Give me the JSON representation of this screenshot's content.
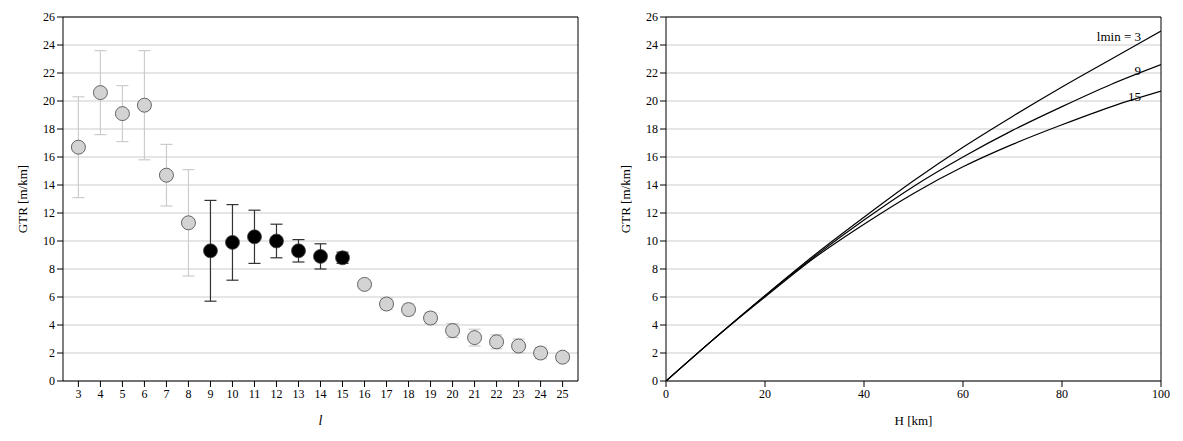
{
  "chart_data": [
    {
      "type": "scatter",
      "x": [
        3,
        4,
        5,
        6,
        7,
        8,
        9,
        10,
        11,
        12,
        13,
        14,
        15,
        16,
        17,
        18,
        19,
        20,
        21,
        22,
        23,
        24,
        25
      ],
      "values": [
        16.7,
        20.6,
        19.1,
        19.7,
        14.7,
        11.3,
        9.3,
        9.9,
        10.3,
        10.0,
        9.3,
        8.9,
        8.8,
        6.9,
        5.5,
        5.1,
        4.5,
        3.6,
        3.1,
        2.8,
        2.5,
        2.0,
        1.7
      ],
      "errors": [
        3.6,
        3.0,
        2.0,
        3.9,
        2.2,
        3.8,
        3.6,
        2.7,
        1.9,
        1.2,
        0.8,
        0.9,
        0.4,
        0.3,
        0.4,
        0.4,
        0.4,
        0.5,
        0.6,
        0.5,
        0.5,
        0.4,
        0.3
      ],
      "colors": [
        "#d3d3d3",
        "#d3d3d3",
        "#d3d3d3",
        "#d3d3d3",
        "#d3d3d3",
        "#d3d3d3",
        "#000000",
        "#000000",
        "#000000",
        "#000000",
        "#000000",
        "#000000",
        "#000000",
        "#d3d3d3",
        "#d3d3d3",
        "#d3d3d3",
        "#d3d3d3",
        "#d3d3d3",
        "#d3d3d3",
        "#d3d3d3",
        "#d3d3d3",
        "#d3d3d3",
        "#d3d3d3"
      ],
      "xlim": [
        2.3,
        25.7
      ],
      "xticks": [
        3,
        4,
        5,
        6,
        7,
        8,
        9,
        10,
        11,
        12,
        13,
        14,
        15,
        16,
        17,
        18,
        19,
        20,
        21,
        22,
        23,
        24,
        25
      ],
      "ylim": [
        0,
        26
      ],
      "yticks": [
        0,
        2,
        4,
        6,
        8,
        10,
        12,
        14,
        16,
        18,
        20,
        22,
        24,
        26
      ],
      "grid": true,
      "x_label": "l",
      "y_label": "GTR [m/km]"
    },
    {
      "type": "line",
      "x": [
        0,
        10,
        20,
        30,
        40,
        50,
        60,
        70,
        80,
        90,
        100
      ],
      "series": [
        {
          "name": "lmin = 3",
          "color": "#000000",
          "values": [
            0,
            3.1,
            6.1,
            9.0,
            11.7,
            14.3,
            16.7,
            18.9,
            21.0,
            23.0,
            25.0
          ]
        },
        {
          "name": "9",
          "color": "#000000",
          "values": [
            0,
            3.1,
            6.1,
            8.9,
            11.5,
            13.9,
            16.0,
            17.9,
            19.6,
            21.2,
            22.6
          ]
        },
        {
          "name": "15",
          "color": "#000000",
          "values": [
            0,
            3.1,
            6.0,
            8.8,
            11.2,
            13.4,
            15.3,
            16.9,
            18.3,
            19.6,
            20.7
          ]
        }
      ],
      "xlim": [
        0,
        100
      ],
      "xticks": [
        0,
        20,
        40,
        60,
        80,
        100
      ],
      "ylim": [
        0,
        26
      ],
      "yticks": [
        0,
        2,
        4,
        6,
        8,
        10,
        12,
        14,
        16,
        18,
        20,
        22,
        24,
        26
      ],
      "grid": true,
      "x_label": "H [km]",
      "y_label": "GTR [m/km]"
    }
  ]
}
